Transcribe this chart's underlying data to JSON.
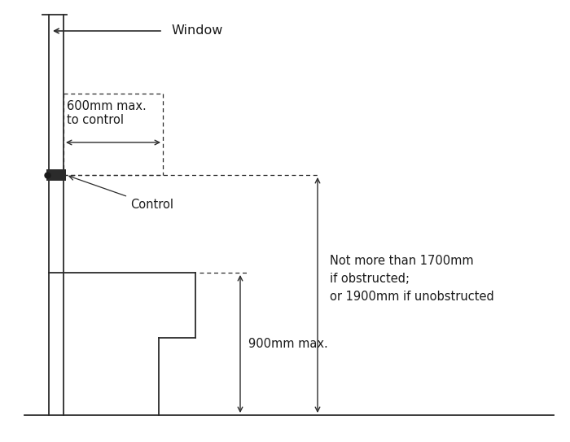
{
  "bg_color": "#ffffff",
  "line_color": "#2b2b2b",
  "text_color": "#1a1a1a",
  "window_label": "Window",
  "control_label": "Control",
  "label_600": "600mm max.\nto control",
  "label_900": "900mm max.",
  "label_1700": "Not more than 1700mm\nif obstructed;\nor 1900mm if unobstructed",
  "font_size_main": 10.5,
  "figw": 7.0,
  "figh": 5.43,
  "dpi": 100
}
